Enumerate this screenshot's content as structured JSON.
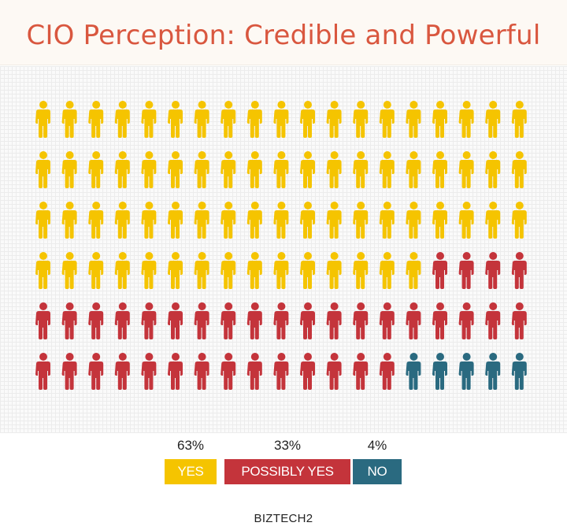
{
  "title": "CIO Perception: Credible and Powerful",
  "source": "BIZTECH2",
  "colors": {
    "yes": "#f5c400",
    "possibly_yes": "#c4343b",
    "no": "#2a6a80"
  },
  "chart_data": {
    "type": "pictogram",
    "title": "CIO Perception: Credible and Powerful",
    "unit_icon": "person-icon",
    "grid": {
      "rows": 6,
      "columns": 19
    },
    "categories": [
      "YES",
      "POSSIBLY YES",
      "NO"
    ],
    "values": [
      63,
      33,
      4
    ],
    "value_labels": [
      "63%",
      "33%",
      "4%"
    ],
    "icon_counts": [
      72,
      37,
      5
    ],
    "legend_placement": "bottom"
  }
}
